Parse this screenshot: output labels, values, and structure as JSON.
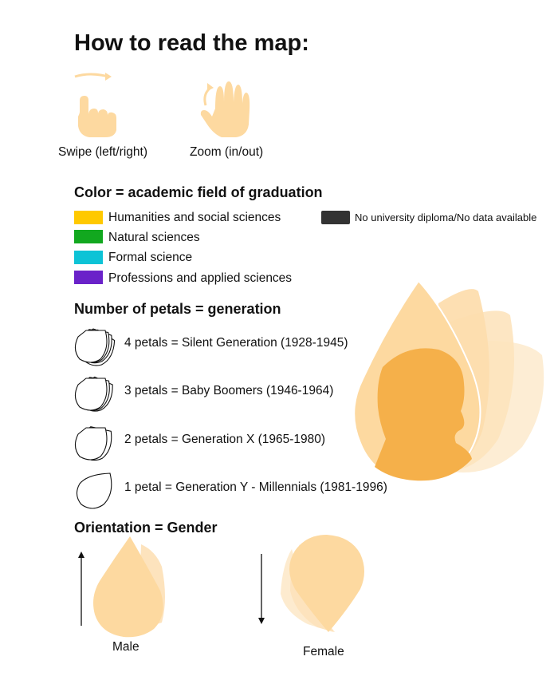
{
  "title": "How to read the map:",
  "gestures": [
    {
      "label": "Swipe (left/right)",
      "icon": "swipe-hand-icon"
    },
    {
      "label": "Zoom (in/out)",
      "icon": "zoom-hand-icon"
    }
  ],
  "color_section": {
    "heading": "Color = academic field of graduation",
    "items": [
      {
        "label": "Humanities and social sciences",
        "color": "#FFC900"
      },
      {
        "label": "Natural sciences",
        "color": "#12A81F"
      },
      {
        "label": "Formal science",
        "color": "#0DC3D6"
      },
      {
        "label": "Professions and applied sciences",
        "color": "#6A22C9"
      },
      {
        "label": "No university diploma/No data available",
        "color": "#333333"
      }
    ]
  },
  "petal_section": {
    "heading": "Number of petals = generation",
    "items": [
      {
        "label": "4 petals = Silent Generation (1928-1945)",
        "petals": 4
      },
      {
        "label": "3 petals = Baby Boomers (1946-1964)",
        "petals": 3
      },
      {
        "label": "2 petals = Generation X (1965-1980)",
        "petals": 2
      },
      {
        "label": "1 petal = Generation Y - Millennials (1981-1996)",
        "petals": 1
      }
    ]
  },
  "orientation_section": {
    "heading": "Orientation = Gender",
    "male_label": "Male",
    "female_label": "Female"
  },
  "colors": {
    "petal_fill": "#FDD9A0",
    "petal_fill_light": "#FDEBCF",
    "silhouette": "#F5B04A",
    "hand": "#FDD9A0"
  }
}
